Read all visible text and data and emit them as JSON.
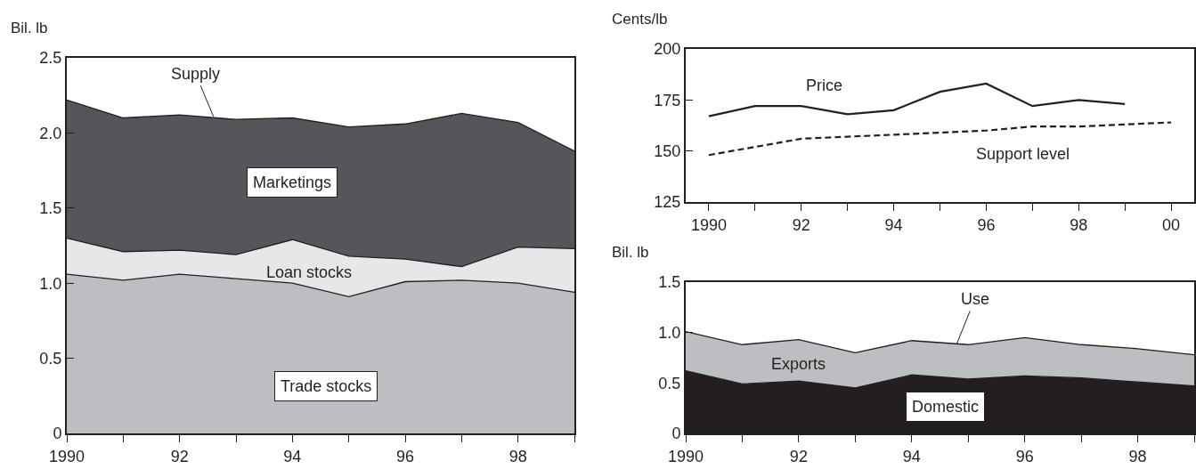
{
  "chart_data": [
    {
      "type": "area",
      "stacked": true,
      "ylabel": "Bil. lb",
      "x": [
        1990,
        1991,
        1992,
        1993,
        1994,
        1995,
        1996,
        1997,
        1998,
        1999
      ],
      "series": [
        {
          "name": "Trade stocks",
          "color": "#bdbec2",
          "values": [
            1.06,
            1.02,
            1.06,
            1.03,
            1.0,
            0.91,
            1.01,
            1.02,
            1.0,
            0.94
          ]
        },
        {
          "name": "Loan stocks",
          "color": "#e6e7e9",
          "values": [
            0.24,
            0.19,
            0.16,
            0.16,
            0.29,
            0.27,
            0.15,
            0.09,
            0.24,
            0.29
          ]
        },
        {
          "name": "Marketings",
          "color": "#55565a",
          "values": [
            0.92,
            0.89,
            0.9,
            0.9,
            0.81,
            0.86,
            0.9,
            1.02,
            0.83,
            0.65
          ]
        }
      ],
      "annotations": [
        {
          "text": "Supply",
          "x": 1992.6,
          "y": 2.11
        }
      ],
      "xlim": [
        1990,
        1999
      ],
      "xticks": [
        {
          "value": 1990,
          "label": "1990"
        },
        {
          "value": 1991,
          "label": null
        },
        {
          "value": 1992,
          "label": "92"
        },
        {
          "value": 1993,
          "label": null
        },
        {
          "value": 1994,
          "label": "94"
        },
        {
          "value": 1995,
          "label": null
        },
        {
          "value": 1996,
          "label": "96"
        },
        {
          "value": 1997,
          "label": null
        },
        {
          "value": 1998,
          "label": "98"
        },
        {
          "value": 1999,
          "label": null
        }
      ],
      "ylim": [
        0,
        2.5
      ],
      "yticks": [
        0,
        {
          "value": 0.5,
          "label": "0.5"
        },
        {
          "value": 1,
          "label": "1.0"
        },
        {
          "value": 1.5,
          "label": "1.5"
        },
        {
          "value": 2,
          "label": "2.0"
        },
        {
          "value": 2.5,
          "label": "2.5"
        }
      ],
      "legend": false,
      "grid": false
    },
    {
      "type": "line",
      "ylabel": "Cents/lb",
      "x": [
        1990,
        1991,
        1992,
        1993,
        1994,
        1995,
        1996,
        1997,
        1998,
        1999,
        2000
      ],
      "series": [
        {
          "name": "Price",
          "color": "#231f20",
          "line_style": "solid",
          "values": [
            167,
            172,
            172,
            168,
            170,
            179,
            183,
            172,
            175,
            173,
            null
          ]
        },
        {
          "name": "Support level",
          "color": "#231f20",
          "line_style": "dashed",
          "values": [
            148,
            152,
            156,
            157,
            158,
            159,
            160,
            162,
            162,
            163,
            164
          ]
        }
      ],
      "xlim": [
        1989.5,
        2000.5
      ],
      "xticks": [
        {
          "value": 1990,
          "label": "1990"
        },
        {
          "value": 1991,
          "label": null
        },
        {
          "value": 1992,
          "label": "92"
        },
        {
          "value": 1993,
          "label": null
        },
        {
          "value": 1994,
          "label": "94"
        },
        {
          "value": 1995,
          "label": null
        },
        {
          "value": 1996,
          "label": "96"
        },
        {
          "value": 1997,
          "label": null
        },
        {
          "value": 1998,
          "label": "98"
        },
        {
          "value": 1999,
          "label": null
        },
        {
          "value": 2000,
          "label": "00"
        }
      ],
      "ylim": [
        125,
        200
      ],
      "yticks": [
        125,
        150,
        175,
        200
      ],
      "legend": false,
      "grid": false,
      "marker": "none"
    },
    {
      "type": "area",
      "stacked": true,
      "ylabel": "Bil. lb",
      "x": [
        1990,
        1991,
        1992,
        1993,
        1994,
        1995,
        1996,
        1997,
        1998,
        1999
      ],
      "series": [
        {
          "name": "Domestic",
          "color": "#231f20",
          "values": [
            0.62,
            0.49,
            0.52,
            0.45,
            0.58,
            0.54,
            0.57,
            0.55,
            0.51,
            0.47
          ]
        },
        {
          "name": "Exports",
          "color": "#bdbec2",
          "values": [
            0.39,
            0.39,
            0.41,
            0.35,
            0.34,
            0.34,
            0.38,
            0.33,
            0.33,
            0.31
          ]
        }
      ],
      "annotations": [
        {
          "text": "Use",
          "x": 1994.8,
          "y": 0.89
        }
      ],
      "xlim": [
        1990,
        1999
      ],
      "xticks": [
        {
          "value": 1990,
          "label": "1990"
        },
        {
          "value": 1991,
          "label": null
        },
        {
          "value": 1992,
          "label": "92"
        },
        {
          "value": 1993,
          "label": null
        },
        {
          "value": 1994,
          "label": "94"
        },
        {
          "value": 1995,
          "label": null
        },
        {
          "value": 1996,
          "label": "96"
        },
        {
          "value": 1997,
          "label": null
        },
        {
          "value": 1998,
          "label": "98"
        },
        {
          "value": 1999,
          "label": null
        }
      ],
      "ylim": [
        0,
        1.5
      ],
      "yticks": [
        0,
        {
          "value": 0.5,
          "label": "0.5"
        },
        {
          "value": 1,
          "label": "1.0"
        },
        {
          "value": 1.5,
          "label": "1.5"
        }
      ],
      "legend": false,
      "grid": false
    }
  ]
}
